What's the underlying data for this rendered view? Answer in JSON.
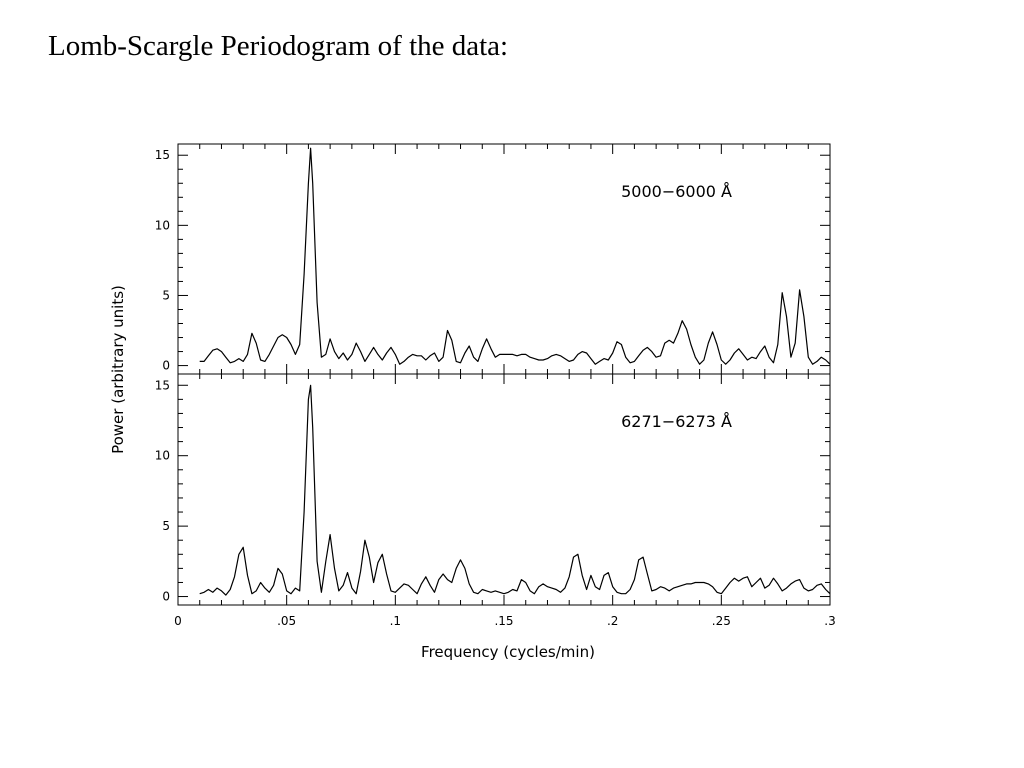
{
  "slide": {
    "title": "Lomb-Scargle Periodogram of the data:"
  },
  "chart_data": {
    "type": "line",
    "xlabel": "Frequency (cycles/min)",
    "ylabel": "Power (arbitrary units)",
    "xlim": [
      0,
      0.3
    ],
    "ylim": [
      -0.6,
      15.8
    ],
    "x_ticks": [
      0,
      0.05,
      0.1,
      0.15,
      0.2,
      0.25,
      0.3
    ],
    "x_tick_labels": [
      "0",
      ".05",
      ".1",
      ".15",
      ".2",
      ".25",
      ".3"
    ],
    "y_ticks": [
      0,
      5,
      10,
      15
    ],
    "y_tick_labels": [
      "0",
      "5",
      "10",
      "15"
    ],
    "grid": false,
    "line_color": "#000000",
    "panels": [
      {
        "label": "5000−6000 Å",
        "x": [
          0.01,
          0.012,
          0.014,
          0.016,
          0.018,
          0.02,
          0.022,
          0.024,
          0.026,
          0.028,
          0.03,
          0.032,
          0.034,
          0.036,
          0.038,
          0.04,
          0.042,
          0.044,
          0.046,
          0.048,
          0.05,
          0.052,
          0.054,
          0.056,
          0.058,
          0.06,
          0.061,
          0.062,
          0.064,
          0.066,
          0.068,
          0.07,
          0.072,
          0.074,
          0.076,
          0.078,
          0.08,
          0.082,
          0.084,
          0.086,
          0.088,
          0.09,
          0.092,
          0.094,
          0.096,
          0.098,
          0.1,
          0.102,
          0.104,
          0.106,
          0.108,
          0.11,
          0.112,
          0.114,
          0.116,
          0.118,
          0.12,
          0.122,
          0.124,
          0.126,
          0.128,
          0.13,
          0.132,
          0.134,
          0.136,
          0.138,
          0.14,
          0.142,
          0.144,
          0.146,
          0.148,
          0.15,
          0.152,
          0.154,
          0.156,
          0.158,
          0.16,
          0.162,
          0.164,
          0.166,
          0.168,
          0.17,
          0.172,
          0.174,
          0.176,
          0.178,
          0.18,
          0.182,
          0.184,
          0.186,
          0.188,
          0.19,
          0.192,
          0.194,
          0.196,
          0.198,
          0.2,
          0.202,
          0.204,
          0.206,
          0.208,
          0.21,
          0.212,
          0.214,
          0.216,
          0.218,
          0.22,
          0.222,
          0.224,
          0.226,
          0.228,
          0.23,
          0.232,
          0.234,
          0.236,
          0.238,
          0.24,
          0.242,
          0.244,
          0.246,
          0.248,
          0.25,
          0.252,
          0.254,
          0.256,
          0.258,
          0.26,
          0.262,
          0.264,
          0.266,
          0.268,
          0.27,
          0.272,
          0.274,
          0.276,
          0.278,
          0.28,
          0.282,
          0.284,
          0.286,
          0.288,
          0.29,
          0.292,
          0.294,
          0.296,
          0.298,
          0.3
        ],
        "y": [
          0.3,
          0.3,
          0.7,
          1.1,
          1.2,
          1.0,
          0.6,
          0.2,
          0.3,
          0.5,
          0.3,
          0.8,
          2.3,
          1.6,
          0.4,
          0.3,
          0.8,
          1.4,
          2.0,
          2.2,
          2.0,
          1.5,
          0.8,
          1.5,
          6.5,
          13.0,
          15.5,
          13.0,
          4.5,
          0.6,
          0.8,
          1.9,
          1.0,
          0.5,
          0.9,
          0.4,
          0.8,
          1.6,
          1.0,
          0.3,
          0.8,
          1.3,
          0.8,
          0.4,
          0.9,
          1.3,
          0.8,
          0.1,
          0.3,
          0.6,
          0.8,
          0.7,
          0.7,
          0.4,
          0.7,
          0.9,
          0.3,
          0.6,
          2.5,
          1.8,
          0.3,
          0.2,
          0.9,
          1.4,
          0.6,
          0.3,
          1.2,
          1.9,
          1.2,
          0.6,
          0.8,
          0.8,
          0.8,
          0.8,
          0.7,
          0.8,
          0.8,
          0.6,
          0.5,
          0.4,
          0.4,
          0.5,
          0.7,
          0.8,
          0.7,
          0.5,
          0.3,
          0.4,
          0.8,
          1.0,
          0.9,
          0.5,
          0.1,
          0.3,
          0.5,
          0.4,
          0.9,
          1.7,
          1.5,
          0.6,
          0.2,
          0.3,
          0.7,
          1.1,
          1.3,
          1.0,
          0.6,
          0.7,
          1.6,
          1.8,
          1.6,
          2.3,
          3.2,
          2.6,
          1.5,
          0.6,
          0.1,
          0.4,
          1.6,
          2.4,
          1.5,
          0.4,
          0.1,
          0.4,
          0.9,
          1.2,
          0.8,
          0.4,
          0.6,
          0.5,
          1.0,
          1.4,
          0.6,
          0.2,
          1.5,
          5.2,
          3.5,
          0.6,
          1.6,
          5.4,
          3.5,
          0.6,
          0.1,
          0.3,
          0.6,
          0.4,
          0.1
        ],
        "series_name": ""
      },
      {
        "label": "6271−6273 Å",
        "x": [
          0.01,
          0.012,
          0.014,
          0.016,
          0.018,
          0.02,
          0.022,
          0.024,
          0.026,
          0.028,
          0.03,
          0.032,
          0.034,
          0.036,
          0.038,
          0.04,
          0.042,
          0.044,
          0.046,
          0.048,
          0.05,
          0.052,
          0.054,
          0.056,
          0.058,
          0.06,
          0.061,
          0.062,
          0.064,
          0.066,
          0.068,
          0.07,
          0.072,
          0.074,
          0.076,
          0.078,
          0.08,
          0.082,
          0.084,
          0.086,
          0.088,
          0.09,
          0.092,
          0.094,
          0.096,
          0.098,
          0.1,
          0.102,
          0.104,
          0.106,
          0.108,
          0.11,
          0.112,
          0.114,
          0.116,
          0.118,
          0.12,
          0.122,
          0.124,
          0.126,
          0.128,
          0.13,
          0.132,
          0.134,
          0.136,
          0.138,
          0.14,
          0.142,
          0.144,
          0.146,
          0.148,
          0.15,
          0.152,
          0.154,
          0.156,
          0.158,
          0.16,
          0.162,
          0.164,
          0.166,
          0.168,
          0.17,
          0.172,
          0.174,
          0.176,
          0.178,
          0.18,
          0.182,
          0.184,
          0.186,
          0.188,
          0.19,
          0.192,
          0.194,
          0.196,
          0.198,
          0.2,
          0.202,
          0.204,
          0.206,
          0.208,
          0.21,
          0.212,
          0.214,
          0.216,
          0.218,
          0.22,
          0.222,
          0.224,
          0.226,
          0.228,
          0.23,
          0.232,
          0.234,
          0.236,
          0.238,
          0.24,
          0.242,
          0.244,
          0.246,
          0.248,
          0.25,
          0.252,
          0.254,
          0.256,
          0.258,
          0.26,
          0.262,
          0.264,
          0.266,
          0.268,
          0.27,
          0.272,
          0.274,
          0.276,
          0.278,
          0.28,
          0.282,
          0.284,
          0.286,
          0.288,
          0.29,
          0.292,
          0.294,
          0.296,
          0.298,
          0.3
        ],
        "y": [
          0.2,
          0.3,
          0.5,
          0.3,
          0.6,
          0.4,
          0.1,
          0.5,
          1.4,
          3.0,
          3.5,
          1.5,
          0.2,
          0.4,
          1.0,
          0.6,
          0.3,
          0.8,
          2.0,
          1.6,
          0.4,
          0.2,
          0.6,
          0.4,
          6.0,
          14.0,
          15.0,
          12.0,
          2.5,
          0.3,
          2.5,
          4.4,
          2.0,
          0.4,
          0.8,
          1.7,
          0.6,
          0.2,
          1.8,
          4.0,
          2.8,
          1.0,
          2.4,
          3.0,
          1.6,
          0.4,
          0.3,
          0.6,
          0.9,
          0.8,
          0.5,
          0.2,
          0.9,
          1.4,
          0.8,
          0.3,
          1.2,
          1.6,
          1.2,
          1.0,
          2.0,
          2.6,
          2.0,
          0.9,
          0.3,
          0.2,
          0.5,
          0.4,
          0.3,
          0.4,
          0.3,
          0.2,
          0.3,
          0.5,
          0.4,
          1.2,
          1.0,
          0.4,
          0.2,
          0.7,
          0.9,
          0.7,
          0.6,
          0.5,
          0.3,
          0.6,
          1.4,
          2.8,
          3.0,
          1.5,
          0.5,
          1.5,
          0.7,
          0.5,
          1.5,
          1.7,
          0.7,
          0.3,
          0.2,
          0.2,
          0.5,
          1.2,
          2.6,
          2.8,
          1.6,
          0.4,
          0.5,
          0.7,
          0.6,
          0.4,
          0.6,
          0.7,
          0.8,
          0.9,
          0.9,
          1.0,
          1.0,
          1.0,
          0.9,
          0.7,
          0.3,
          0.2,
          0.6,
          1.0,
          1.3,
          1.1,
          1.3,
          1.4,
          0.7,
          1.0,
          1.3,
          0.6,
          0.8,
          1.3,
          0.9,
          0.4,
          0.6,
          0.9,
          1.1,
          1.2,
          0.6,
          0.4,
          0.5,
          0.8,
          0.9,
          0.5,
          0.2
        ],
        "series_name": ""
      }
    ]
  }
}
